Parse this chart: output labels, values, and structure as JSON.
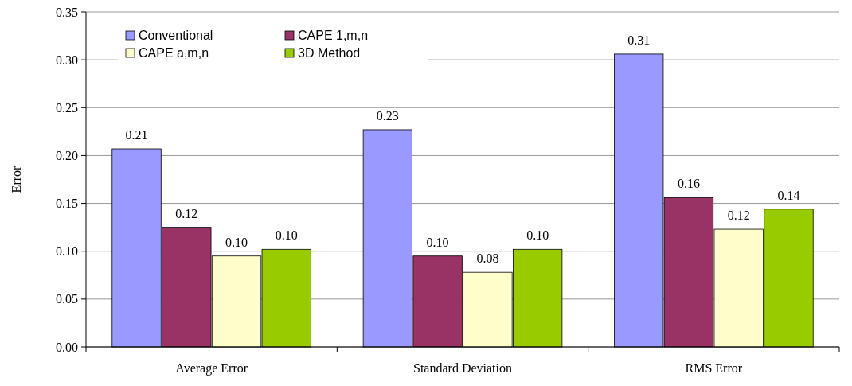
{
  "chart_data": {
    "type": "bar",
    "ylabel": "Error",
    "categories": [
      "Average Error",
      "Standard Deviation",
      "RMS Error"
    ],
    "series": [
      {
        "name": "Conventional",
        "color": "#9999ff",
        "values": [
          0.207,
          0.227,
          0.306
        ],
        "value_labels": [
          "0.21",
          "0.23",
          "0.31"
        ]
      },
      {
        "name": "CAPE 1,m,n",
        "color": "#993366",
        "values": [
          0.125,
          0.095,
          0.156
        ],
        "value_labels": [
          "0.12",
          "0.10",
          "0.16"
        ]
      },
      {
        "name": "CAPE a,m,n",
        "color": "#ffffcc",
        "values": [
          0.095,
          0.078,
          0.123
        ],
        "value_labels": [
          "0.10",
          "0.08",
          "0.12"
        ]
      },
      {
        "name": "3D Method",
        "color": "#99cc00",
        "values": [
          0.102,
          0.102,
          0.144
        ],
        "value_labels": [
          "0.10",
          "0.10",
          "0.14"
        ]
      }
    ],
    "ylim": [
      0,
      0.35
    ],
    "yticks": [
      {
        "value": 0,
        "label": "0.00"
      },
      {
        "value": 0.05,
        "label": "0.05"
      },
      {
        "value": 0.1,
        "label": "0.10"
      },
      {
        "value": 0.15,
        "label": "0.15"
      },
      {
        "value": 0.2,
        "label": "0.20"
      },
      {
        "value": 0.25,
        "label": "0.25"
      },
      {
        "value": 0.3,
        "label": "0.30"
      },
      {
        "value": 0.35,
        "label": "0.35"
      }
    ],
    "grid": "y",
    "legend": "top left"
  }
}
